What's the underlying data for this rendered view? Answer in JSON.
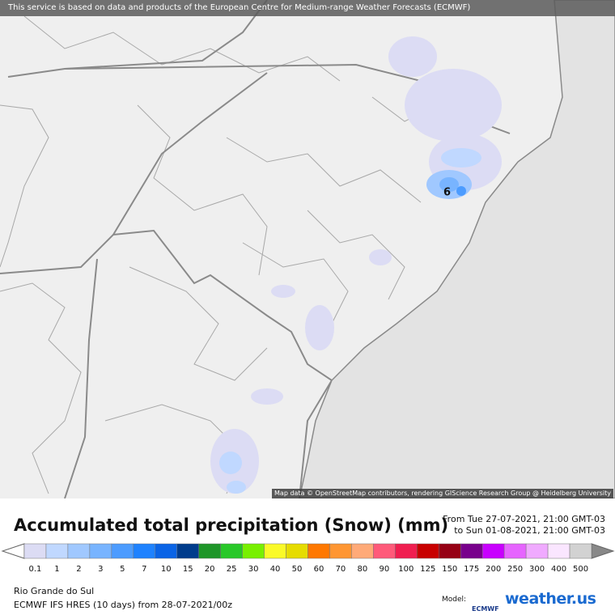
{
  "banner": "This service is based on data and products of the European Centre for Medium-range Weather Forecasts (ECMWF)",
  "map": {
    "attribution": "Map data © OpenStreetMap contributors, rendering GIScience Research Group @ Heidelberg University",
    "point_label": "6"
  },
  "header": {
    "title": "Accumulated total precipitation (Snow) (mm)",
    "from": "From Tue 27-07-2021, 21:00 GMT-03",
    "to": "to Sun 01-08-2021, 21:00 GMT-03"
  },
  "legend": {
    "items": [
      {
        "label": "0.1",
        "color": "#dcdcf4"
      },
      {
        "label": "1",
        "color": "#c0d8ff"
      },
      {
        "label": "2",
        "color": "#a0c8ff"
      },
      {
        "label": "3",
        "color": "#78b4ff"
      },
      {
        "label": "5",
        "color": "#4c9cff"
      },
      {
        "label": "7",
        "color": "#1e82ff"
      },
      {
        "label": "10",
        "color": "#0a64e6"
      },
      {
        "label": "15",
        "color": "#003c8c"
      },
      {
        "label": "20",
        "color": "#1e9628"
      },
      {
        "label": "25",
        "color": "#28c828"
      },
      {
        "label": "30",
        "color": "#78f000"
      },
      {
        "label": "40",
        "color": "#fafa28"
      },
      {
        "label": "50",
        "color": "#e6dc00"
      },
      {
        "label": "60",
        "color": "#ff7800"
      },
      {
        "label": "70",
        "color": "#ff9632"
      },
      {
        "label": "80",
        "color": "#ffaa78"
      },
      {
        "label": "90",
        "color": "#ff5a7a"
      },
      {
        "label": "100",
        "color": "#f01e50"
      },
      {
        "label": "125",
        "color": "#c80000"
      },
      {
        "label": "150",
        "color": "#960014"
      },
      {
        "label": "175",
        "color": "#78008c"
      },
      {
        "label": "200",
        "color": "#c800ff"
      },
      {
        "label": "250",
        "color": "#e664ff"
      },
      {
        "label": "300",
        "color": "#f0aaff"
      },
      {
        "label": "400",
        "color": "#fae6ff"
      },
      {
        "label": "500",
        "color": "#d2d2d2"
      }
    ]
  },
  "footer": {
    "region": "Rio Grande do Sul",
    "model_run": "ECMWF IFS HRES (10 days) from 28-07-2021/00z",
    "model_label": "Model:",
    "model_logo": "ECMWF",
    "brand": "weather.us"
  }
}
